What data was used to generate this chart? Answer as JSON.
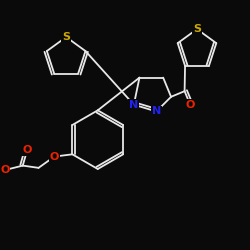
{
  "background_color": "#0a0a0a",
  "bond_color": "#e8e8e8",
  "atom_colors": {
    "S": "#ccaa00",
    "N": "#2222ee",
    "O": "#ee2200",
    "C": "#e8e8e8"
  },
  "figsize": [
    2.5,
    2.5
  ],
  "dpi": 100,
  "lw": 1.3
}
